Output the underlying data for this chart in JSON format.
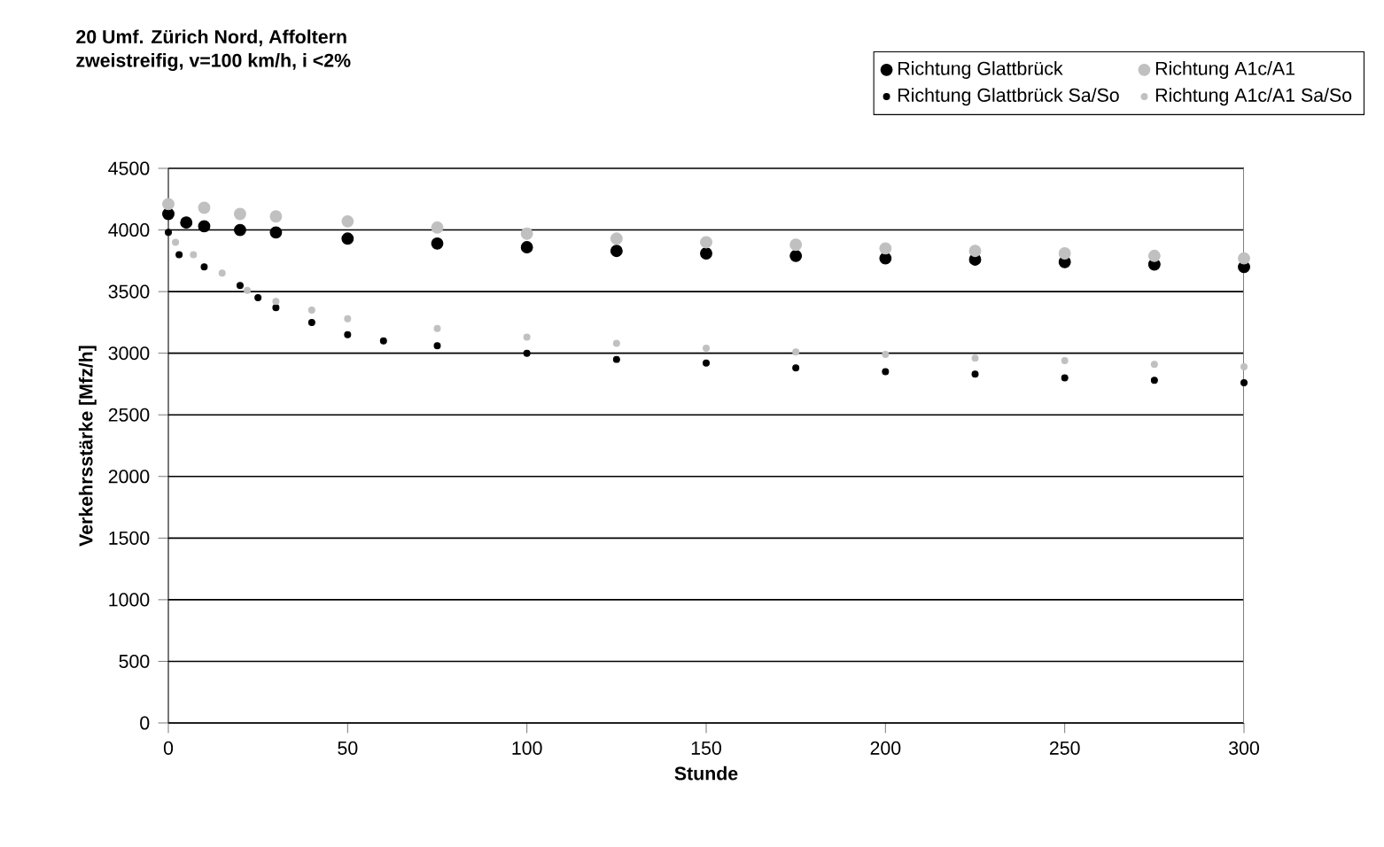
{
  "chart_data": {
    "type": "scatter",
    "title": "20 Umf. Zürich Nord, Affoltern",
    "subtitle": "zweistreifig, v=100 km/h, i <2%",
    "xlabel": "Stunde",
    "ylabel": "Verkehrsstärke [Mfz/h]",
    "xlim": [
      0,
      300
    ],
    "ylim": [
      0,
      4500
    ],
    "xticks": [
      0,
      50,
      100,
      150,
      200,
      250,
      300
    ],
    "yticks": [
      0,
      500,
      1000,
      1500,
      2000,
      2500,
      3000,
      3500,
      4000,
      4500
    ],
    "grid": "y",
    "legend": "top right",
    "marker": "circle",
    "series": [
      {
        "name": "Richtung Glattbrück",
        "color": "#000000",
        "x": [
          0,
          5,
          10,
          20,
          30,
          50,
          75,
          100,
          125,
          150,
          175,
          200,
          225,
          250,
          275,
          300
        ],
        "values": [
          4130,
          4060,
          4030,
          4000,
          3980,
          3930,
          3890,
          3860,
          3830,
          3810,
          3790,
          3770,
          3760,
          3740,
          3720,
          3700
        ]
      },
      {
        "name": "Richtung A1c/A1",
        "color": "#c0c0c0",
        "x": [
          0,
          10,
          20,
          30,
          50,
          75,
          100,
          125,
          150,
          175,
          200,
          225,
          250,
          275,
          300
        ],
        "values": [
          4210,
          4180,
          4130,
          4110,
          4070,
          4020,
          3970,
          3930,
          3900,
          3880,
          3850,
          3830,
          3810,
          3790,
          3770
        ]
      },
      {
        "name": "Richtung Glattbrück Sa/So",
        "color": "#000000",
        "x": [
          0,
          3,
          10,
          20,
          25,
          30,
          40,
          50,
          60,
          75,
          100,
          125,
          150,
          175,
          200,
          225,
          250,
          275,
          300
        ],
        "values": [
          3980,
          3800,
          3700,
          3550,
          3450,
          3370,
          3250,
          3150,
          3100,
          3060,
          3000,
          2950,
          2920,
          2880,
          2850,
          2830,
          2800,
          2780,
          2760
        ]
      },
      {
        "name": "Richtung A1c/A1 Sa/So",
        "color": "#c0c0c0",
        "x": [
          2,
          7,
          15,
          22,
          30,
          40,
          50,
          75,
          100,
          125,
          150,
          175,
          200,
          225,
          250,
          275,
          300
        ],
        "values": [
          3900,
          3800,
          3650,
          3510,
          3420,
          3350,
          3280,
          3200,
          3130,
          3080,
          3040,
          3010,
          2990,
          2960,
          2940,
          2910,
          2890
        ]
      }
    ]
  }
}
